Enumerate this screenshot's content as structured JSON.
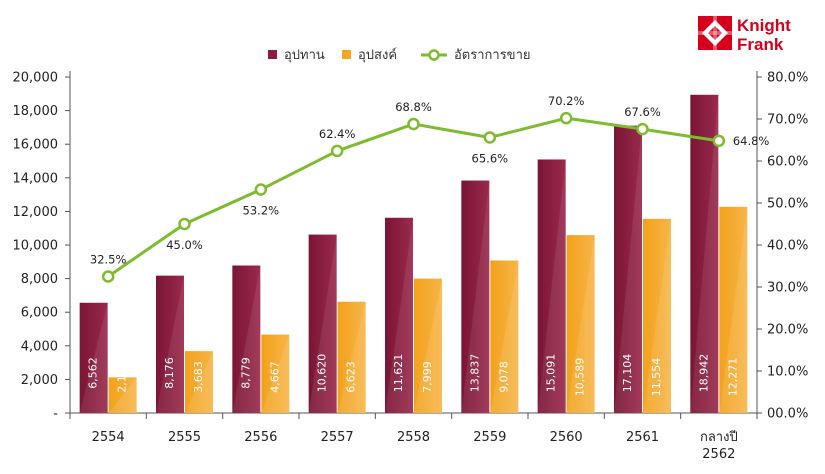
{
  "logo": {
    "line1": "Knight",
    "line2": "Frank"
  },
  "chart_data": {
    "type": "bar",
    "categories": [
      "2554",
      "2555",
      "2556",
      "2557",
      "2558",
      "2559",
      "2560",
      "2561",
      "กลางปี 2562"
    ],
    "series": [
      {
        "name": "อุปทาน",
        "values": [
          6562,
          8176,
          8779,
          10620,
          11621,
          13837,
          15091,
          17104,
          18942
        ],
        "labels": [
          "6,562",
          "8,176",
          "8,779",
          "10,620",
          "11,621",
          "13,837",
          "15,091",
          "17,104",
          "18,942"
        ],
        "color": "#8c1d40",
        "axis": "left"
      },
      {
        "name": "อุปสงค์",
        "values": [
          2121,
          3683,
          4667,
          6623,
          7999,
          9078,
          10589,
          11554,
          12271
        ],
        "labels": [
          "2,121",
          "3,683",
          "4,667",
          "6,623",
          "7,999",
          "9,078",
          "10,589",
          "11,554",
          "12,271"
        ],
        "color": "#f5a623",
        "axis": "left"
      },
      {
        "name": "อัตราการขาย",
        "type": "line",
        "values": [
          32.5,
          45.0,
          53.2,
          62.4,
          68.8,
          65.6,
          70.2,
          67.6,
          64.8
        ],
        "labels": [
          "32.5%",
          "45.0%",
          "53.2%",
          "62.4%",
          "68.8%",
          "65.6%",
          "70.2%",
          "67.6%",
          "64.8%"
        ],
        "color": "#7dbb2f",
        "axis": "right"
      }
    ],
    "ylim": [
      0,
      20000
    ],
    "yticks": [
      0,
      2000,
      4000,
      6000,
      8000,
      10000,
      12000,
      14000,
      16000,
      18000,
      20000
    ],
    "ytick_labels": [
      "-",
      "2,000",
      "4,000",
      "6,000",
      "8,000",
      "10,000",
      "12,000",
      "14,000",
      "16,000",
      "18,000",
      "20,000"
    ],
    "y2lim": [
      0,
      80
    ],
    "y2ticks": [
      0,
      10,
      20,
      30,
      40,
      50,
      60,
      70,
      80
    ],
    "y2tick_labels": [
      "00.0%",
      "10.0%",
      "20.0%",
      "30.0%",
      "40.0%",
      "50.0%",
      "60.0%",
      "70.0%",
      "80.0%"
    ],
    "legend": "top-center",
    "grid": false
  }
}
